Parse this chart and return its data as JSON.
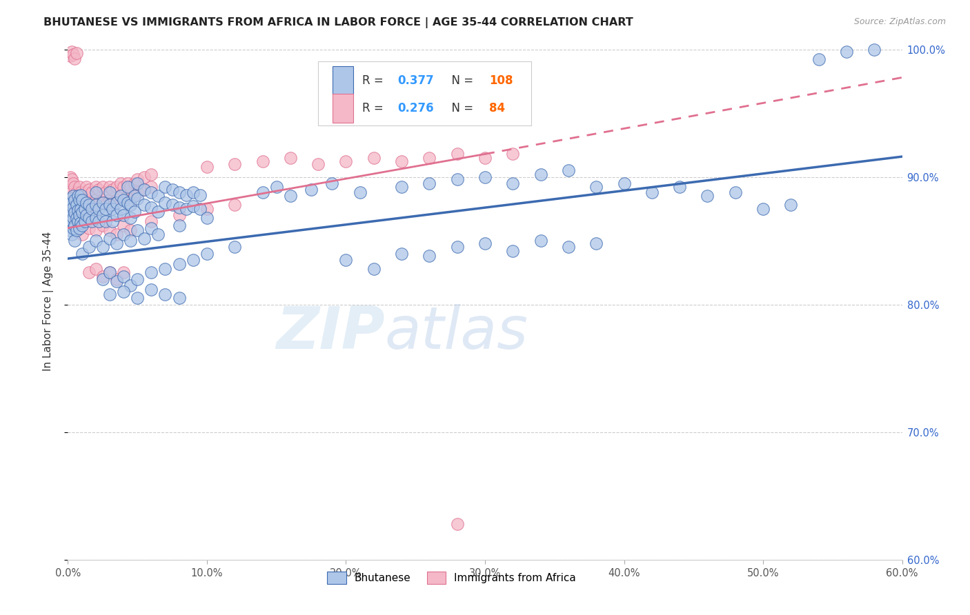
{
  "title": "BHUTANESE VS IMMIGRANTS FROM AFRICA IN LABOR FORCE | AGE 35-44 CORRELATION CHART",
  "source": "Source: ZipAtlas.com",
  "ylabel": "In Labor Force | Age 35-44",
  "watermark": "ZIPatlas",
  "xmin": 0.0,
  "xmax": 0.6,
  "ymin": 0.6,
  "ymax": 1.005,
  "yticks": [
    0.6,
    0.7,
    0.8,
    0.9,
    1.0
  ],
  "ytick_labels": [
    "60.0%",
    "70.0%",
    "80.0%",
    "90.0%",
    "100.0%"
  ],
  "xticks": [
    0.0,
    0.1,
    0.2,
    0.3,
    0.4,
    0.5,
    0.6
  ],
  "xtick_labels": [
    "0.0%",
    "10.0%",
    "20.0%",
    "30.0%",
    "40.0%",
    "50.0%",
    "60.0%"
  ],
  "blue_R": "0.377",
  "blue_N": "108",
  "pink_R": "0.276",
  "pink_N": "84",
  "blue_fill": "#aec6e8",
  "pink_fill": "#f4b8c8",
  "blue_edge": "#3c6ab0",
  "pink_edge": "#e07090",
  "blue_line": "#3c6ab0",
  "pink_line": "#e07090",
  "legend_val_color": "#3399ff",
  "legend_n_color": "#ff6600",
  "blue_scatter": [
    [
      0.002,
      0.868
    ],
    [
      0.002,
      0.877
    ],
    [
      0.002,
      0.883
    ],
    [
      0.002,
      0.858
    ],
    [
      0.003,
      0.872
    ],
    [
      0.003,
      0.865
    ],
    [
      0.003,
      0.88
    ],
    [
      0.003,
      0.855
    ],
    [
      0.004,
      0.876
    ],
    [
      0.004,
      0.868
    ],
    [
      0.004,
      0.86
    ],
    [
      0.004,
      0.885
    ],
    [
      0.005,
      0.872
    ],
    [
      0.005,
      0.862
    ],
    [
      0.005,
      0.882
    ],
    [
      0.005,
      0.85
    ],
    [
      0.006,
      0.878
    ],
    [
      0.006,
      0.868
    ],
    [
      0.006,
      0.858
    ],
    [
      0.007,
      0.874
    ],
    [
      0.007,
      0.865
    ],
    [
      0.007,
      0.885
    ],
    [
      0.008,
      0.87
    ],
    [
      0.008,
      0.86
    ],
    [
      0.008,
      0.882
    ],
    [
      0.009,
      0.875
    ],
    [
      0.009,
      0.864
    ],
    [
      0.009,
      0.886
    ],
    [
      0.01,
      0.872
    ],
    [
      0.01,
      0.862
    ],
    [
      0.01,
      0.882
    ],
    [
      0.012,
      0.875
    ],
    [
      0.012,
      0.865
    ],
    [
      0.013,
      0.88
    ],
    [
      0.013,
      0.87
    ],
    [
      0.015,
      0.878
    ],
    [
      0.015,
      0.868
    ],
    [
      0.017,
      0.875
    ],
    [
      0.017,
      0.865
    ],
    [
      0.02,
      0.878
    ],
    [
      0.02,
      0.868
    ],
    [
      0.02,
      0.888
    ],
    [
      0.022,
      0.875
    ],
    [
      0.022,
      0.865
    ],
    [
      0.025,
      0.88
    ],
    [
      0.025,
      0.87
    ],
    [
      0.027,
      0.875
    ],
    [
      0.027,
      0.865
    ],
    [
      0.03,
      0.878
    ],
    [
      0.03,
      0.888
    ],
    [
      0.032,
      0.875
    ],
    [
      0.032,
      0.865
    ],
    [
      0.035,
      0.88
    ],
    [
      0.035,
      0.87
    ],
    [
      0.038,
      0.885
    ],
    [
      0.038,
      0.875
    ],
    [
      0.04,
      0.882
    ],
    [
      0.04,
      0.87
    ],
    [
      0.043,
      0.88
    ],
    [
      0.043,
      0.892
    ],
    [
      0.045,
      0.878
    ],
    [
      0.045,
      0.868
    ],
    [
      0.048,
      0.885
    ],
    [
      0.048,
      0.873
    ],
    [
      0.05,
      0.895
    ],
    [
      0.05,
      0.883
    ],
    [
      0.055,
      0.89
    ],
    [
      0.055,
      0.878
    ],
    [
      0.06,
      0.888
    ],
    [
      0.06,
      0.876
    ],
    [
      0.065,
      0.885
    ],
    [
      0.065,
      0.873
    ],
    [
      0.07,
      0.892
    ],
    [
      0.07,
      0.88
    ],
    [
      0.075,
      0.89
    ],
    [
      0.075,
      0.878
    ],
    [
      0.08,
      0.888
    ],
    [
      0.08,
      0.876
    ],
    [
      0.085,
      0.886
    ],
    [
      0.085,
      0.875
    ],
    [
      0.09,
      0.888
    ],
    [
      0.09,
      0.877
    ],
    [
      0.095,
      0.886
    ],
    [
      0.095,
      0.875
    ],
    [
      0.01,
      0.84
    ],
    [
      0.015,
      0.845
    ],
    [
      0.02,
      0.85
    ],
    [
      0.025,
      0.845
    ],
    [
      0.03,
      0.852
    ],
    [
      0.035,
      0.848
    ],
    [
      0.04,
      0.855
    ],
    [
      0.045,
      0.85
    ],
    [
      0.05,
      0.858
    ],
    [
      0.055,
      0.852
    ],
    [
      0.06,
      0.86
    ],
    [
      0.065,
      0.855
    ],
    [
      0.08,
      0.862
    ],
    [
      0.1,
      0.868
    ],
    [
      0.025,
      0.82
    ],
    [
      0.03,
      0.825
    ],
    [
      0.035,
      0.818
    ],
    [
      0.04,
      0.822
    ],
    [
      0.045,
      0.815
    ],
    [
      0.05,
      0.82
    ],
    [
      0.06,
      0.825
    ],
    [
      0.07,
      0.828
    ],
    [
      0.08,
      0.832
    ],
    [
      0.09,
      0.835
    ],
    [
      0.1,
      0.84
    ],
    [
      0.12,
      0.845
    ],
    [
      0.14,
      0.888
    ],
    [
      0.15,
      0.892
    ],
    [
      0.16,
      0.885
    ],
    [
      0.175,
      0.89
    ],
    [
      0.19,
      0.895
    ],
    [
      0.21,
      0.888
    ],
    [
      0.24,
      0.892
    ],
    [
      0.26,
      0.895
    ],
    [
      0.28,
      0.898
    ],
    [
      0.3,
      0.9
    ],
    [
      0.32,
      0.895
    ],
    [
      0.34,
      0.902
    ],
    [
      0.36,
      0.905
    ],
    [
      0.38,
      0.892
    ],
    [
      0.4,
      0.895
    ],
    [
      0.42,
      0.888
    ],
    [
      0.44,
      0.892
    ],
    [
      0.46,
      0.885
    ],
    [
      0.48,
      0.888
    ],
    [
      0.5,
      0.875
    ],
    [
      0.52,
      0.878
    ],
    [
      0.54,
      0.992
    ],
    [
      0.56,
      0.998
    ],
    [
      0.58,
      1.0
    ],
    [
      0.2,
      0.835
    ],
    [
      0.22,
      0.828
    ],
    [
      0.24,
      0.84
    ],
    [
      0.26,
      0.838
    ],
    [
      0.28,
      0.845
    ],
    [
      0.3,
      0.848
    ],
    [
      0.32,
      0.842
    ],
    [
      0.34,
      0.85
    ],
    [
      0.36,
      0.845
    ],
    [
      0.38,
      0.848
    ],
    [
      0.03,
      0.808
    ],
    [
      0.04,
      0.81
    ],
    [
      0.05,
      0.805
    ],
    [
      0.06,
      0.812
    ],
    [
      0.07,
      0.808
    ],
    [
      0.08,
      0.805
    ]
  ],
  "pink_scatter": [
    [
      0.002,
      0.882
    ],
    [
      0.002,
      0.892
    ],
    [
      0.002,
      0.9
    ],
    [
      0.002,
      0.87
    ],
    [
      0.003,
      0.888
    ],
    [
      0.003,
      0.878
    ],
    [
      0.003,
      0.898
    ],
    [
      0.004,
      0.885
    ],
    [
      0.004,
      0.875
    ],
    [
      0.004,
      0.895
    ],
    [
      0.005,
      0.882
    ],
    [
      0.005,
      0.872
    ],
    [
      0.005,
      0.892
    ],
    [
      0.006,
      0.888
    ],
    [
      0.006,
      0.878
    ],
    [
      0.007,
      0.885
    ],
    [
      0.007,
      0.875
    ],
    [
      0.008,
      0.892
    ],
    [
      0.008,
      0.88
    ],
    [
      0.009,
      0.888
    ],
    [
      0.009,
      0.878
    ],
    [
      0.01,
      0.885
    ],
    [
      0.01,
      0.875
    ],
    [
      0.012,
      0.888
    ],
    [
      0.012,
      0.878
    ],
    [
      0.013,
      0.892
    ],
    [
      0.013,
      0.882
    ],
    [
      0.015,
      0.89
    ],
    [
      0.015,
      0.88
    ],
    [
      0.017,
      0.888
    ],
    [
      0.017,
      0.878
    ],
    [
      0.02,
      0.892
    ],
    [
      0.02,
      0.882
    ],
    [
      0.02,
      0.872
    ],
    [
      0.022,
      0.89
    ],
    [
      0.022,
      0.88
    ],
    [
      0.025,
      0.892
    ],
    [
      0.025,
      0.882
    ],
    [
      0.027,
      0.888
    ],
    [
      0.027,
      0.878
    ],
    [
      0.03,
      0.892
    ],
    [
      0.03,
      0.882
    ],
    [
      0.032,
      0.89
    ],
    [
      0.032,
      0.88
    ],
    [
      0.035,
      0.892
    ],
    [
      0.035,
      0.882
    ],
    [
      0.038,
      0.895
    ],
    [
      0.038,
      0.885
    ],
    [
      0.04,
      0.892
    ],
    [
      0.04,
      0.882
    ],
    [
      0.043,
      0.895
    ],
    [
      0.043,
      0.885
    ],
    [
      0.045,
      0.892
    ],
    [
      0.045,
      0.882
    ],
    [
      0.048,
      0.895
    ],
    [
      0.048,
      0.885
    ],
    [
      0.05,
      0.898
    ],
    [
      0.05,
      0.888
    ],
    [
      0.055,
      0.9
    ],
    [
      0.055,
      0.89
    ],
    [
      0.06,
      0.902
    ],
    [
      0.06,
      0.892
    ],
    [
      0.002,
      0.995
    ],
    [
      0.003,
      0.998
    ],
    [
      0.004,
      0.996
    ],
    [
      0.005,
      0.993
    ],
    [
      0.006,
      0.997
    ],
    [
      0.1,
      0.908
    ],
    [
      0.12,
      0.91
    ],
    [
      0.14,
      0.912
    ],
    [
      0.16,
      0.915
    ],
    [
      0.18,
      0.91
    ],
    [
      0.2,
      0.912
    ],
    [
      0.22,
      0.915
    ],
    [
      0.24,
      0.912
    ],
    [
      0.26,
      0.915
    ],
    [
      0.28,
      0.918
    ],
    [
      0.3,
      0.915
    ],
    [
      0.32,
      0.918
    ],
    [
      0.01,
      0.855
    ],
    [
      0.015,
      0.86
    ],
    [
      0.02,
      0.858
    ],
    [
      0.025,
      0.862
    ],
    [
      0.03,
      0.858
    ],
    [
      0.035,
      0.855
    ],
    [
      0.04,
      0.862
    ],
    [
      0.045,
      0.858
    ],
    [
      0.06,
      0.865
    ],
    [
      0.08,
      0.87
    ],
    [
      0.1,
      0.875
    ],
    [
      0.12,
      0.878
    ],
    [
      0.015,
      0.825
    ],
    [
      0.02,
      0.828
    ],
    [
      0.025,
      0.822
    ],
    [
      0.03,
      0.825
    ],
    [
      0.035,
      0.82
    ],
    [
      0.04,
      0.825
    ],
    [
      0.28,
      0.628
    ]
  ],
  "blue_reg": [
    0.0,
    0.6,
    0.836,
    0.916
  ],
  "pink_reg_solid": [
    0.0,
    0.3,
    0.86,
    0.918
  ],
  "pink_reg_dashed": [
    0.3,
    0.6,
    0.918,
    0.978
  ]
}
